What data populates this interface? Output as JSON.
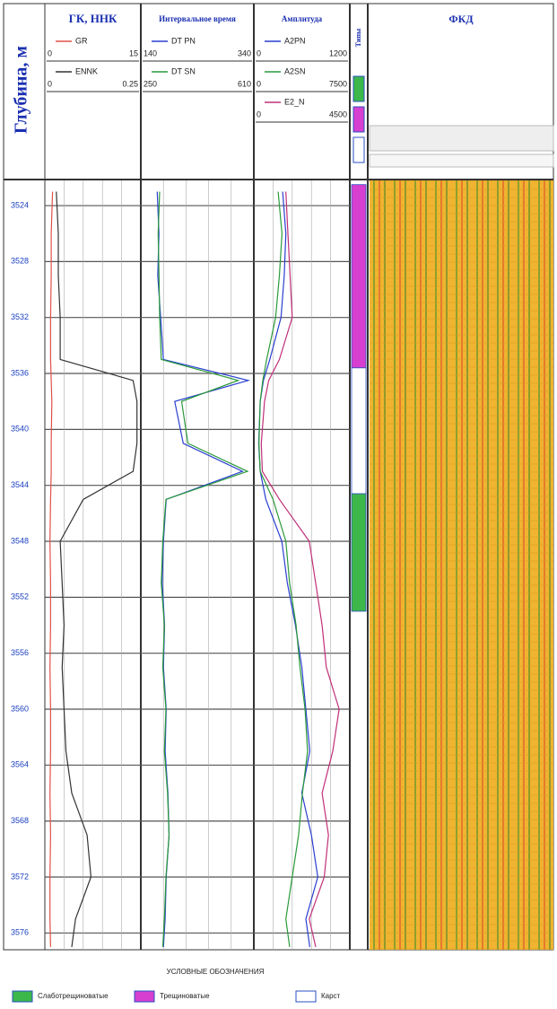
{
  "chart_data": {
    "type": "well_log",
    "ylabel": "Глубина, м",
    "ylim": [
      3522.2,
      3577.2
    ],
    "yticks": [
      3524,
      3528,
      3532,
      3536,
      3540,
      3544,
      3548,
      3552,
      3556,
      3560,
      3564,
      3568,
      3572,
      3576
    ],
    "depth": [
      3523,
      3526,
      3529,
      3532,
      3535,
      3536.5,
      3538,
      3541,
      3543,
      3545,
      3548,
      3551,
      3554,
      3557,
      3560,
      3563,
      3566,
      3569,
      3572,
      3575,
      3577
    ],
    "tracks": [
      {
        "title": "ГК, ННК",
        "series": [
          {
            "name": "GR",
            "color": "#e0504a",
            "xlim": [
              0,
              15
            ],
            "values": [
              1.2,
              1.0,
              1.0,
              0.9,
              0.9,
              1.0,
              1.1,
              1.0,
              1.0,
              0.9,
              0.8,
              0.9,
              0.9,
              0.8,
              0.9,
              0.9,
              0.8,
              0.9,
              0.8,
              0.8,
              0.9
            ]
          },
          {
            "name": "ENNK",
            "color": "#333333",
            "xlim": [
              0,
              0.25
            ],
            "values": [
              0.03,
              0.035,
              0.035,
              0.04,
              0.04,
              0.23,
              0.24,
              0.24,
              0.23,
              0.1,
              0.04,
              0.045,
              0.05,
              0.045,
              0.05,
              0.055,
              0.07,
              0.11,
              0.12,
              0.08,
              0.07
            ]
          }
        ]
      },
      {
        "title": "Интервальное время",
        "series": [
          {
            "name": "DT PN",
            "color": "#2a3fd0",
            "xlim": [
              140,
              340
            ],
            "values": [
              169,
              172,
              170,
              175,
              180,
              330,
              200,
              215,
              320,
              185,
              180,
              178,
              182,
              180,
              185,
              183,
              188,
              190,
              185,
              183,
              180
            ]
          },
          {
            "name": "DT SN",
            "color": "#2a9a3a",
            "xlim": [
              250,
              610
            ],
            "values": [
              310,
              305,
              308,
              310,
              315,
              560,
              380,
              400,
              590,
              330,
              320,
              315,
              325,
              320,
              330,
              325,
              335,
              340,
              330,
              325,
              320
            ]
          }
        ]
      },
      {
        "title": "Амплитуда",
        "series": [
          {
            "name": "A2PN",
            "color": "#2a3fd0",
            "xlim": [
              0,
              1200
            ],
            "values": [
              360,
              400,
              380,
              340,
              200,
              120,
              80,
              60,
              80,
              150,
              350,
              420,
              520,
              600,
              650,
              700,
              600,
              720,
              800,
              650,
              700
            ]
          },
          {
            "name": "A2SN",
            "color": "#2a9a3a",
            "xlim": [
              0,
              7500
            ],
            "values": [
              1900,
              2200,
              2000,
              1700,
              1000,
              700,
              500,
              400,
              500,
              1500,
              2500,
              2800,
              3300,
              3600,
              4000,
              4200,
              3800,
              3500,
              3000,
              2500,
              2800
            ]
          },
          {
            "name": "E2_N",
            "color": "#c0307a",
            "xlim": [
              0,
              4500
            ],
            "values": [
              1500,
              1600,
              1700,
              1800,
              1200,
              700,
              500,
              350,
              400,
              1200,
              2600,
              2900,
              3200,
              3400,
              4000,
              3700,
              3200,
              3500,
              3300,
              2600,
              2900
            ]
          }
        ]
      }
    ],
    "lithology": {
      "title": "Типы",
      "intervals": [
        {
          "top": 3522.5,
          "bottom": 3535.6,
          "color": "#d63fd0"
        },
        {
          "top": 3535.6,
          "bottom": 3544.6,
          "color": "#ffffff"
        },
        {
          "top": 3544.6,
          "bottom": 3553,
          "color": "#3cb84a"
        }
      ]
    },
    "image": {
      "title": "ФКД"
    },
    "legend": {
      "title": "УСЛОВНЫЕ ОБОЗНАЧЕНИЯ",
      "items": [
        {
          "name": "Слаботрещиноватые",
          "color": "#3cb84a"
        },
        {
          "name": "Трещиноватые",
          "color": "#d63fd0"
        },
        {
          "name": "Карст",
          "color": "#ffffff"
        }
      ]
    }
  }
}
